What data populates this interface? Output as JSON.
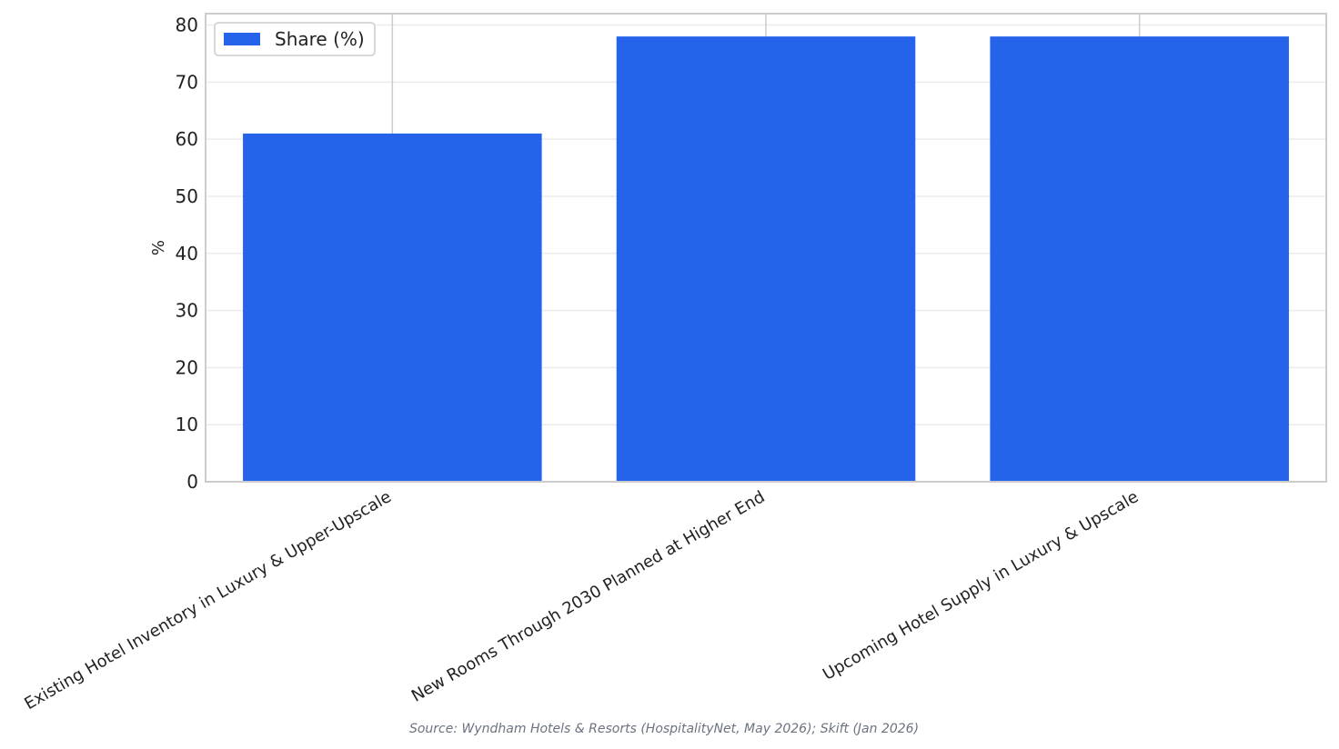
{
  "chart_data": {
    "type": "bar",
    "categories": [
      "Existing Hotel Inventory in Luxury & Upper-Upscale",
      "New Rooms Through 2030 Planned at Higher End",
      "Upcoming Hotel Supply in Luxury & Upscale"
    ],
    "series": [
      {
        "name": "Share (%)",
        "values": [
          61,
          78,
          78
        ],
        "color": "#2563eb"
      }
    ],
    "ylabel": "%",
    "ylim": [
      0,
      82
    ],
    "yticks": [
      0,
      10,
      20,
      30,
      40,
      50,
      60,
      70,
      80
    ],
    "grid": true,
    "legend_position": "top-left",
    "source": "Source: Wyndham Hotels & Resorts (HospitalityNet, May 2026); Skift (Jan 2026)"
  }
}
